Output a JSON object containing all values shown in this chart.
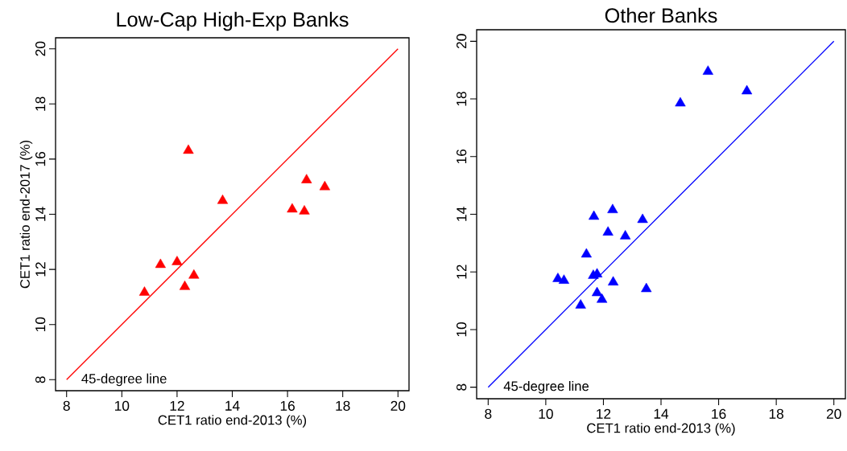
{
  "chart_data": [
    {
      "type": "scatter",
      "title": "Low-Cap High-Exp Banks",
      "xlabel": "CET1 ratio end-2013 (%)",
      "ylabel": "CET1 ratio end-2017 (%)",
      "xlim": [
        7.6,
        20.4
      ],
      "ylim": [
        7.6,
        20.4
      ],
      "xticks": [
        8,
        10,
        12,
        14,
        16,
        18,
        20
      ],
      "yticks": [
        8,
        10,
        12,
        14,
        16,
        18,
        20
      ],
      "grid": false,
      "annotations": [
        "45-degree line"
      ],
      "series": [
        {
          "marker": "triangle",
          "color": "#ff0000",
          "x": [
            12.41,
            13.65,
            16.69,
            17.35,
            16.17,
            16.61,
            11.4,
            12.0,
            12.61,
            12.28,
            10.82
          ],
          "values": [
            16.31,
            14.49,
            15.24,
            14.99,
            14.18,
            14.11,
            12.17,
            12.27,
            11.78,
            11.37,
            11.16
          ]
        },
        {
          "type": "line",
          "marker": "none",
          "color": "#ff0000",
          "x": [
            8,
            20
          ],
          "values": [
            8,
            20
          ]
        }
      ]
    },
    {
      "type": "scatter",
      "title": "Other Banks",
      "xlabel": "CET1 ratio end-2013 (%)",
      "xlim": [
        7.6,
        20.4
      ],
      "ylim": [
        7.6,
        20.4
      ],
      "xticks": [
        8,
        10,
        12,
        14,
        16,
        18,
        20
      ],
      "yticks": [
        8,
        10,
        12,
        14,
        16,
        18,
        20
      ],
      "grid": false,
      "annotations": [
        "45-degree line"
      ],
      "series": [
        {
          "marker": "triangle",
          "color": "#0000ff",
          "x": [
            15.63,
            16.98,
            14.67,
            12.32,
            11.67,
            13.36,
            12.16,
            12.76,
            11.41,
            10.42,
            10.63,
            11.65,
            11.78,
            12.34,
            13.49,
            11.78,
            11.95,
            11.21
          ],
          "values": [
            18.95,
            18.27,
            17.85,
            14.15,
            13.92,
            13.81,
            13.37,
            13.24,
            12.61,
            11.76,
            11.7,
            11.87,
            11.92,
            11.64,
            11.41,
            11.27,
            11.04,
            10.84
          ]
        },
        {
          "type": "line",
          "marker": "none",
          "color": "#0000ff",
          "x": [
            8,
            20
          ],
          "values": [
            8,
            20
          ]
        }
      ]
    }
  ]
}
